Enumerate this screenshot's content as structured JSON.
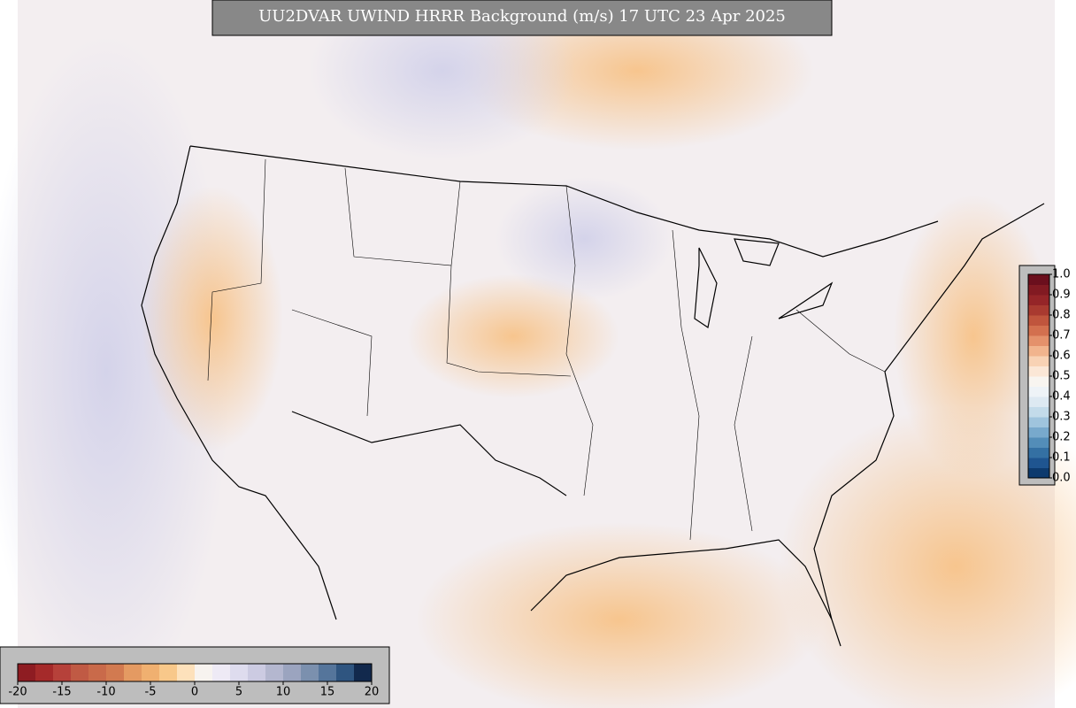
{
  "title": "UU2DVAR UWIND HRRR Background (m/s) 17 UTC 23 Apr 2025",
  "colorbars": {
    "wind": {
      "lim": [
        -20,
        20
      ],
      "ticks": [
        -20,
        -15,
        -10,
        -5,
        0,
        5,
        10,
        15,
        20
      ],
      "colors": [
        "#8e1c22",
        "#a52a2a",
        "#b6413a",
        "#c05a44",
        "#c96a4a",
        "#d27a50",
        "#e49a62",
        "#f0b070",
        "#f8c88a",
        "#fde1bb",
        "#f7f3ef",
        "#eeeaf5",
        "#dedcee",
        "#cccbe2",
        "#b4b7cf",
        "#9ba4bf",
        "#7b90ae",
        "#55759b",
        "#2f5580",
        "#12294d"
      ]
    },
    "score": {
      "lim": [
        0,
        1
      ],
      "ticks": [
        {
          "value": 0,
          "label": "0.0"
        },
        0.1,
        0.2,
        0.3,
        0.4,
        0.5,
        0.6,
        0.7,
        0.8,
        0.9,
        {
          "value": 1,
          "label": "1.0"
        }
      ],
      "colors": [
        "#0d3a6e",
        "#1f5590",
        "#3470a3",
        "#538db8",
        "#78a9cc",
        "#9fc4dd",
        "#c3dbea",
        "#dde9f2",
        "#eef3f7",
        "#f8f5f0",
        "#fbe7d6",
        "#f8d2b4",
        "#f1b48d",
        "#e4916b",
        "#d3704f",
        "#c0553d",
        "#a93a30",
        "#952528",
        "#821a22",
        "#6b0f1d"
      ]
    }
  }
}
